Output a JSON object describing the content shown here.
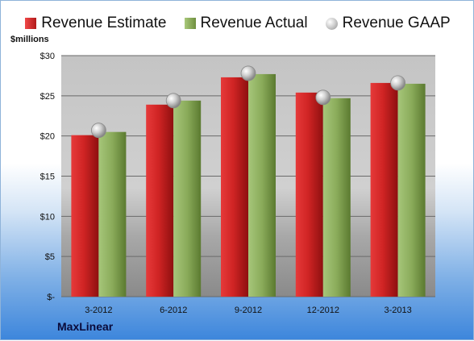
{
  "legend": {
    "estimate": "Revenue Estimate",
    "actual": "Revenue Actual",
    "gaap": "Revenue GAAP"
  },
  "unit_label": "$millions",
  "company": "MaxLinear",
  "colors": {
    "estimate": "#cc2222",
    "actual": "#8aab5a",
    "gaap": "#b8b8b8"
  },
  "chart_data": {
    "type": "bar",
    "categories": [
      "3-2012",
      "6-2012",
      "9-2012",
      "12-2012",
      "3-2013"
    ],
    "series": [
      {
        "name": "Revenue Estimate",
        "values": [
          20.1,
          23.9,
          27.3,
          25.4,
          26.6
        ]
      },
      {
        "name": "Revenue Actual",
        "values": [
          20.5,
          24.4,
          27.7,
          24.7,
          26.5
        ]
      },
      {
        "name": "Revenue GAAP",
        "values": [
          20.7,
          24.4,
          27.8,
          24.8,
          26.6
        ],
        "marker": "circle"
      }
    ],
    "ylabel": "$millions",
    "ylim": [
      0,
      30
    ],
    "yticks": [
      0,
      5,
      10,
      15,
      20,
      25,
      30
    ],
    "ytick_labels": [
      "$-",
      "$5",
      "$10",
      "$15",
      "$20",
      "$25",
      "$30"
    ],
    "grid": true,
    "legend_position": "top"
  }
}
